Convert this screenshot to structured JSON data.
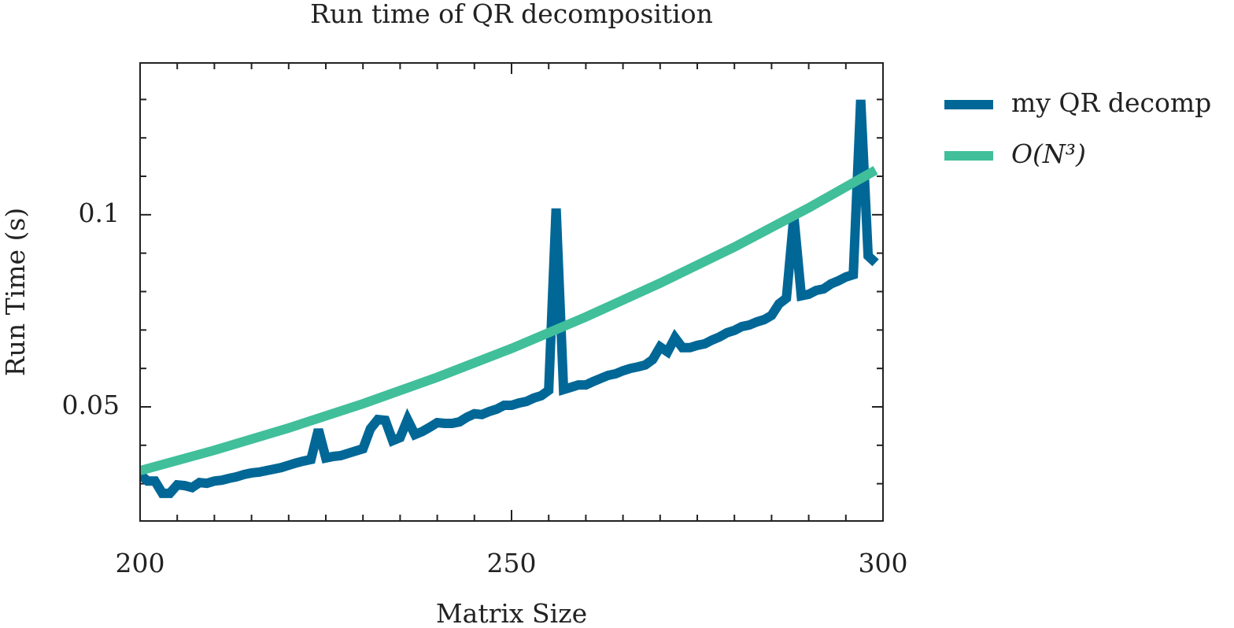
{
  "chart_data": {
    "type": "line",
    "title": "Run time of QR decomposition",
    "xlabel": "Matrix Size",
    "ylabel": "Run Time (s)",
    "xlim": [
      200,
      300
    ],
    "xticks": [
      200,
      250,
      300
    ],
    "xminorticks": [
      205,
      210,
      215,
      220,
      225,
      230,
      235,
      240,
      245,
      255,
      260,
      265,
      270,
      275,
      280,
      285,
      290,
      295
    ],
    "ylim": [
      0.0203,
      0.1395
    ],
    "yticks": [
      0.05,
      0.1
    ],
    "yminorticks": [
      0.03,
      0.04,
      0.06,
      0.07,
      0.08,
      0.09,
      0.11,
      0.12,
      0.13
    ],
    "legend": "outside upper right",
    "series": [
      {
        "name": "my QR decomp",
        "color": "#006796",
        "x": [
          200,
          201,
          202,
          203,
          204,
          205,
          206,
          207,
          208,
          209,
          210,
          211,
          212,
          213,
          214,
          215,
          216,
          217,
          218,
          219,
          220,
          221,
          222,
          223,
          224,
          225,
          226,
          227,
          228,
          229,
          230,
          231,
          232,
          233,
          234,
          235,
          236,
          237,
          238,
          239,
          240,
          241,
          242,
          243,
          244,
          245,
          246,
          247,
          248,
          249,
          250,
          251,
          252,
          253,
          254,
          255,
          256,
          257,
          258,
          259,
          260,
          261,
          262,
          263,
          264,
          265,
          266,
          267,
          268,
          269,
          270,
          271,
          272,
          273,
          274,
          275,
          276,
          277,
          278,
          279,
          280,
          281,
          282,
          283,
          284,
          285,
          286,
          287,
          288,
          289,
          290,
          291,
          292,
          293,
          294,
          295,
          296,
          297,
          298,
          299
        ],
        "values": [
          0.0324,
          0.0307,
          0.0307,
          0.0275,
          0.0275,
          0.0297,
          0.0295,
          0.029,
          0.0303,
          0.0301,
          0.0307,
          0.0309,
          0.0314,
          0.0318,
          0.0324,
          0.0328,
          0.033,
          0.0334,
          0.0338,
          0.0342,
          0.0348,
          0.0354,
          0.0359,
          0.0363,
          0.0441,
          0.0367,
          0.0371,
          0.0373,
          0.0379,
          0.0385,
          0.0391,
          0.0443,
          0.0467,
          0.0465,
          0.0412,
          0.042,
          0.0467,
          0.0428,
          0.0436,
          0.0447,
          0.0459,
          0.0457,
          0.0457,
          0.0461,
          0.0473,
          0.0482,
          0.048,
          0.0488,
          0.0494,
          0.0504,
          0.0504,
          0.051,
          0.0514,
          0.0523,
          0.0529,
          0.0543,
          0.1016,
          0.0545,
          0.0551,
          0.0557,
          0.0557,
          0.0566,
          0.0574,
          0.0582,
          0.0586,
          0.0594,
          0.06,
          0.0604,
          0.0609,
          0.0623,
          0.0656,
          0.0643,
          0.068,
          0.0654,
          0.0654,
          0.066,
          0.0664,
          0.0674,
          0.0682,
          0.0693,
          0.0699,
          0.0709,
          0.0713,
          0.0721,
          0.0727,
          0.0738,
          0.0768,
          0.0783,
          0.0996,
          0.0789,
          0.0793,
          0.0803,
          0.0807,
          0.082,
          0.0828,
          0.0838,
          0.0844,
          0.1299,
          0.0893,
          0.0875
        ]
      },
      {
        "name": "O(N³)",
        "color": "#40bf9a",
        "x": [
          200,
          210,
          220,
          230,
          240,
          250,
          260,
          270,
          280,
          290,
          299
        ],
        "values": [
          0.0334,
          0.0387,
          0.0445,
          0.0508,
          0.0577,
          0.0652,
          0.0734,
          0.0822,
          0.0916,
          0.1018,
          0.1116
        ]
      }
    ]
  }
}
